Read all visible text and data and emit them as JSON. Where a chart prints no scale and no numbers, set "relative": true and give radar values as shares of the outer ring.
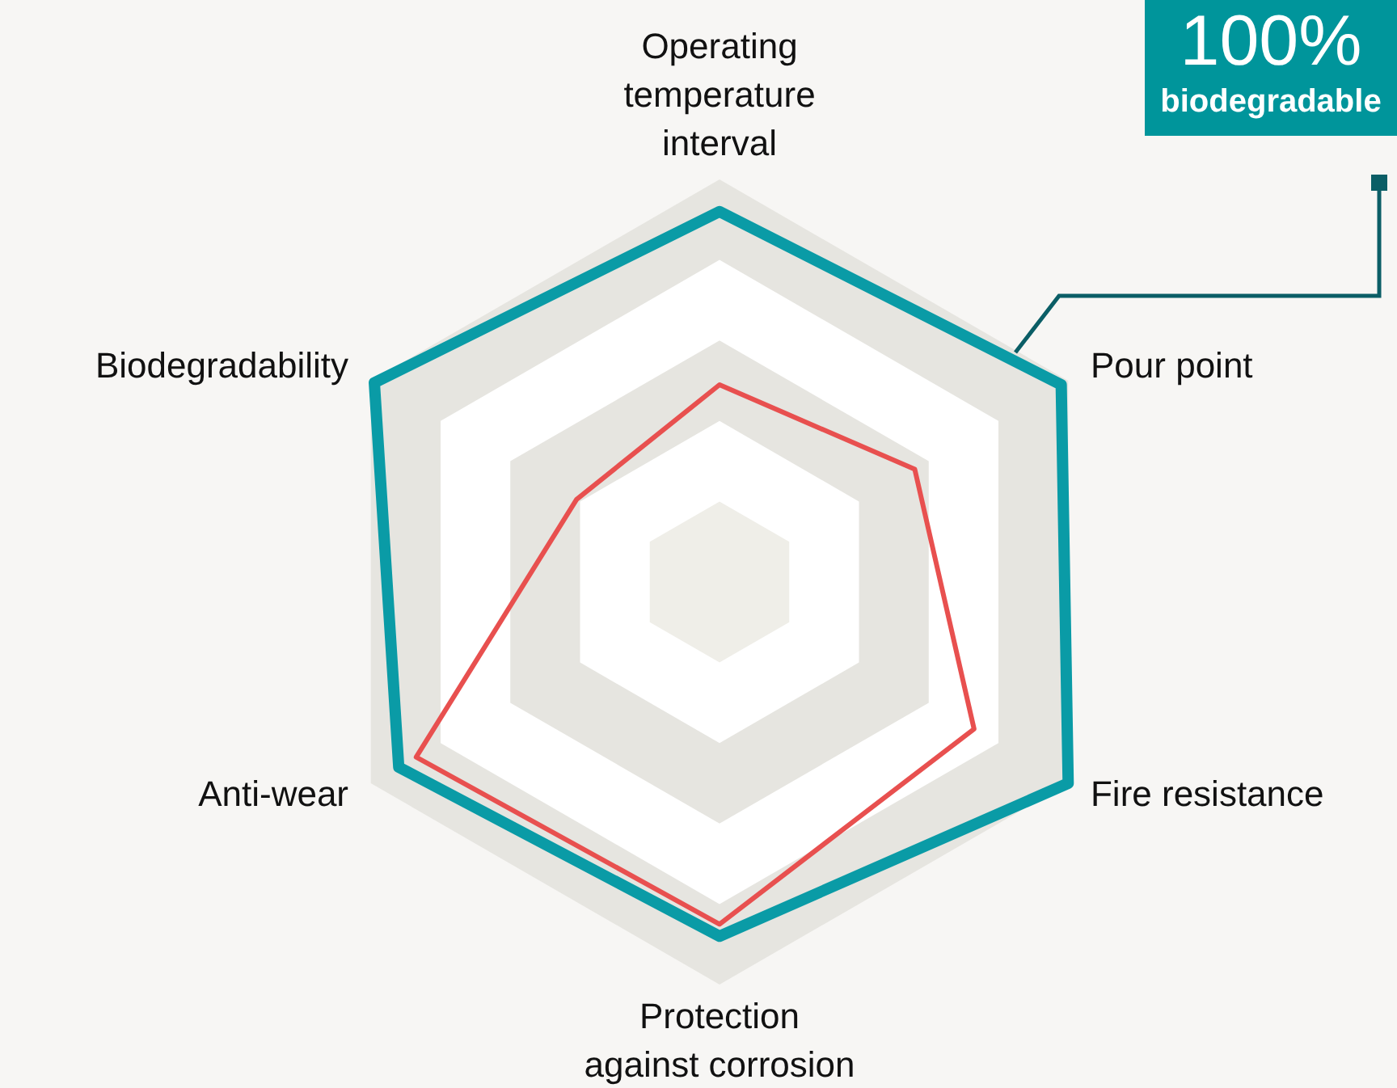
{
  "chart_data": {
    "type": "radar",
    "relative": true,
    "grid": true,
    "legend": false,
    "categories": [
      "Operating temperature interval",
      "Pour point",
      "Fire resistance",
      "Protection against corrosion",
      "Anti-wear",
      "Biodegradability"
    ],
    "series": [
      {
        "color": "#0a9ba6",
        "values": [
          0.92,
          0.98,
          1.0,
          0.88,
          0.92,
          0.99
        ]
      },
      {
        "color": "#e8504f",
        "values": [
          0.49,
          0.56,
          0.73,
          0.85,
          0.87,
          0.41
        ]
      }
    ],
    "annotations": [
      "100%",
      "biodegradable"
    ]
  }
}
